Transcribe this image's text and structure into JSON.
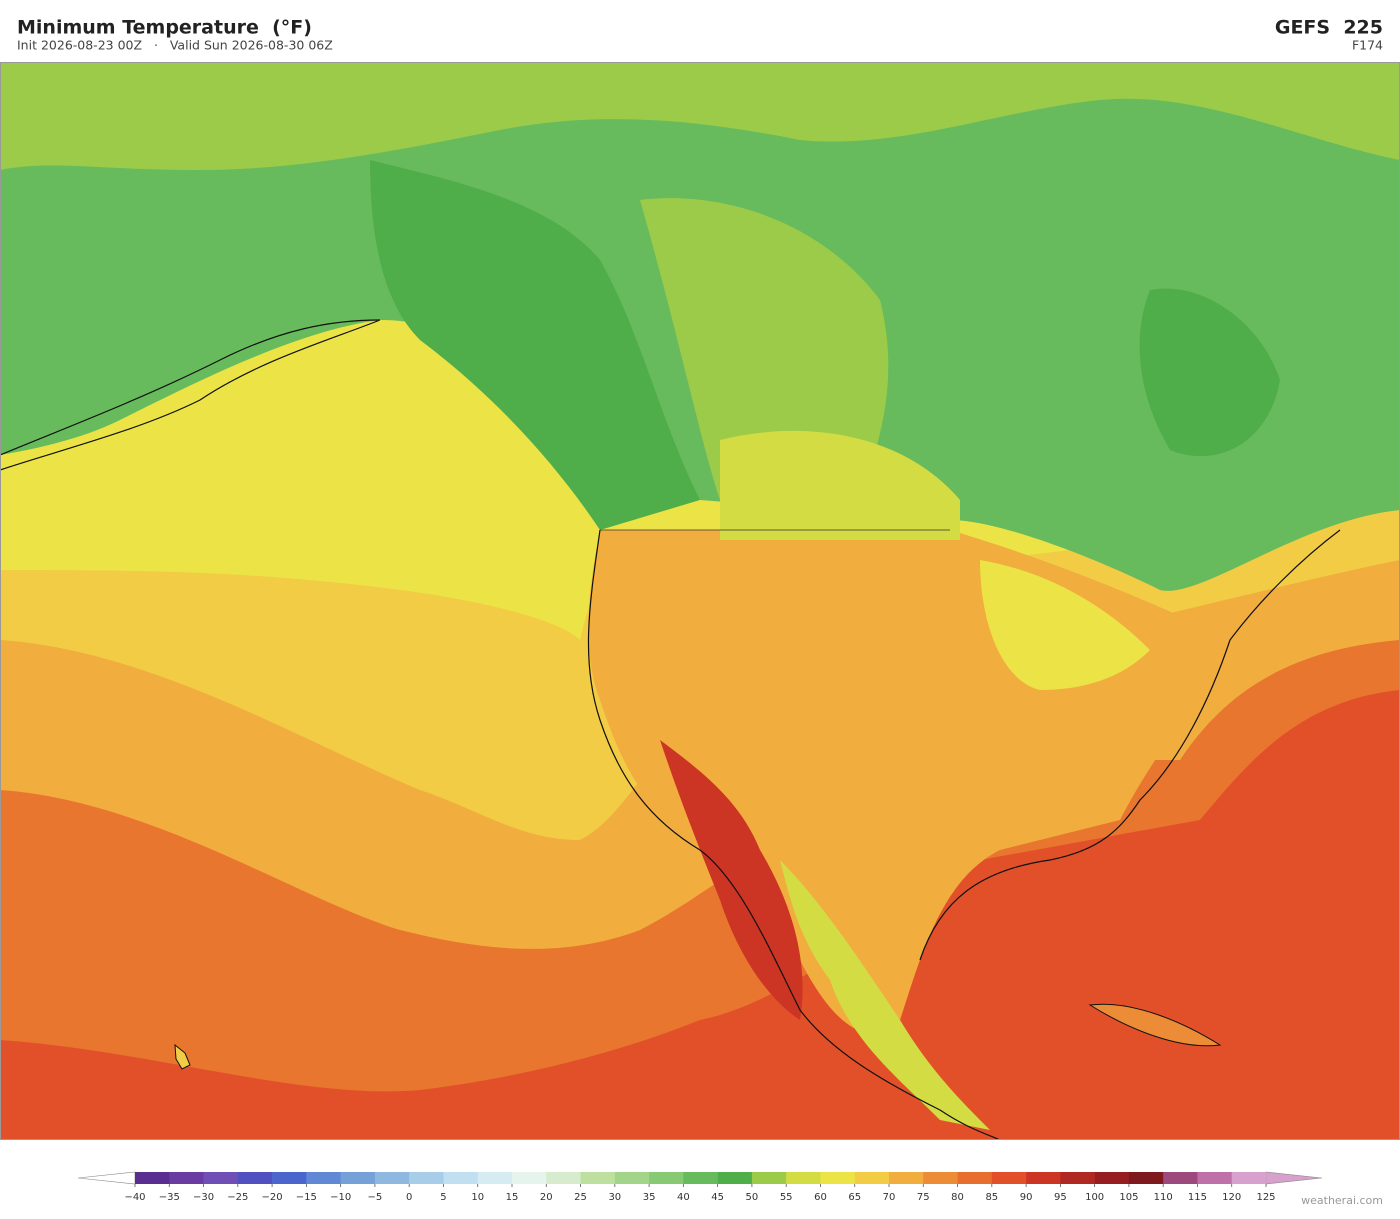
{
  "header": {
    "title": "Minimum Temperature  (°F)",
    "subtitle": "Init 2026-08-23 00Z   ·   Valid Sun 2026-08-30 06Z",
    "model": "GEFS  225",
    "forecast_hour": "F174"
  },
  "colorbar": {
    "ticks": [
      {
        "value": -40,
        "label": "−40"
      },
      {
        "value": -35,
        "label": "−35"
      },
      {
        "value": -30,
        "label": "−30"
      },
      {
        "value": -25,
        "label": "−25"
      },
      {
        "value": -20,
        "label": "−20"
      },
      {
        "value": -15,
        "label": "−15"
      },
      {
        "value": -10,
        "label": "−10"
      },
      {
        "value": -5,
        "label": "−5"
      },
      0,
      5,
      10,
      15,
      20,
      25,
      30,
      35,
      40,
      45,
      50,
      55,
      60,
      65,
      70,
      75,
      80,
      85,
      90,
      95,
      100,
      105,
      110,
      115,
      120,
      125
    ],
    "colors": [
      "#5a2d91",
      "#6a3ba0",
      "#6f4fb5",
      "#5050c0",
      "#4a66cc",
      "#6088d4",
      "#75a0d8",
      "#8fb8e0",
      "#a8cde8",
      "#c0dff0",
      "#d4ecf2",
      "#e6f4ee",
      "#d6eccc",
      "#bde0a0",
      "#a2d58a",
      "#88ca74",
      "#68bb5c",
      "#4fae4a",
      "#9ccb4a",
      "#d4dc44",
      "#ece446",
      "#f2cc44",
      "#f1ad3e",
      "#ec8c36",
      "#e86e30",
      "#e2502a",
      "#cc3424",
      "#b02822",
      "#961e20",
      "#7e1a1e",
      "#9c4a7e",
      "#c070a8",
      "#d8a0cc"
    ],
    "under_color": "#ffffff",
    "over_color": "#d8a0cc"
  },
  "watermark": "weatherai.com"
}
